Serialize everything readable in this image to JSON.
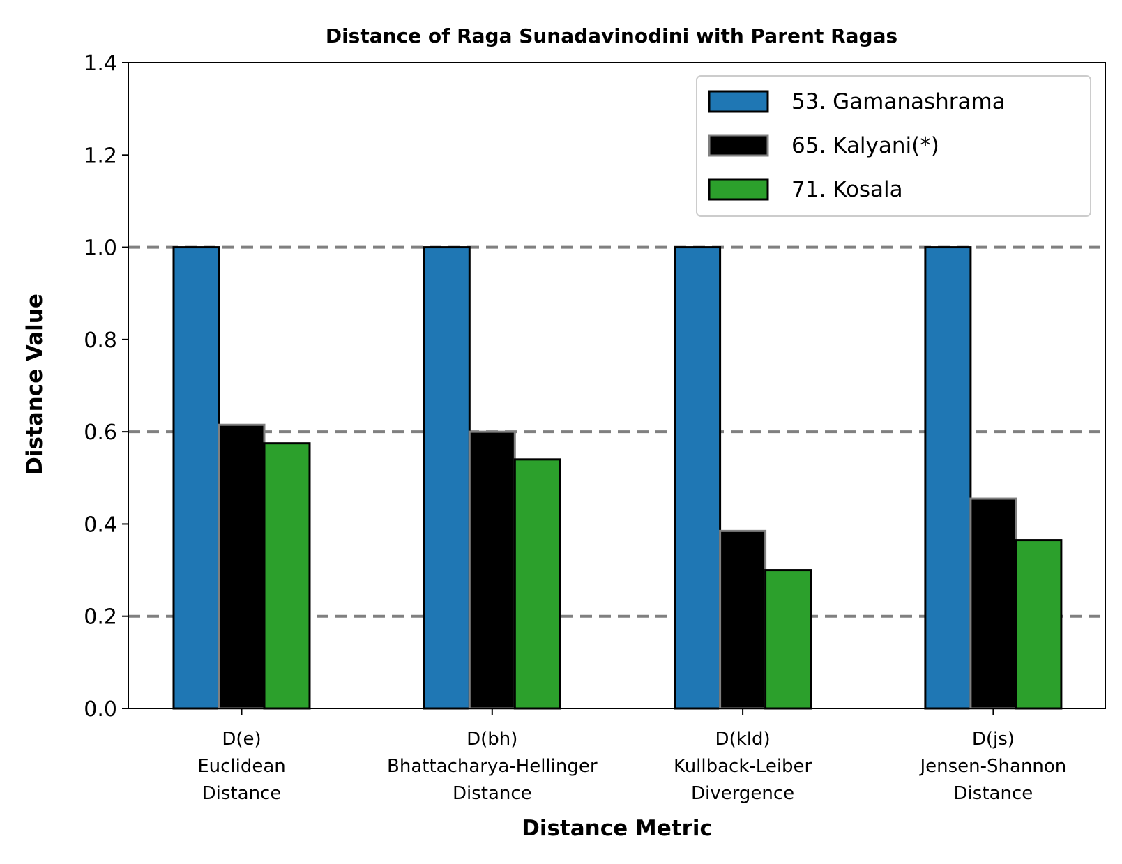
{
  "chart_data": {
    "type": "bar",
    "title": "Distance of Raga Sunadavinodini with Parent Ragas",
    "xlabel": "Distance Metric",
    "ylabel": "Distance Value",
    "categories": [
      [
        "D(e)",
        "Euclidean",
        "Distance"
      ],
      [
        "D(bh)",
        "Bhattacharya-Hellinger",
        "Distance"
      ],
      [
        "D(kld)",
        "Kullback-Leiber",
        "Divergence"
      ],
      [
        "D(js)",
        "Jensen-Shannon",
        "Distance"
      ]
    ],
    "series": [
      {
        "name": "53. Gamanashrama",
        "values": [
          1.0,
          1.0,
          1.0,
          1.0
        ],
        "color": "#1f77b4",
        "edge": "#000000"
      },
      {
        "name": "65. Kalyani(*)",
        "values": [
          0.615,
          0.6,
          0.385,
          0.455
        ],
        "color": "#000000",
        "edge": "#808080"
      },
      {
        "name": "71. Kosala",
        "values": [
          0.575,
          0.54,
          0.3,
          0.365
        ],
        "color": "#2ca02c",
        "edge": "#000000"
      }
    ],
    "ylim": [
      0,
      1.4
    ],
    "yticks": [
      "0.0",
      "0.2",
      "0.4",
      "0.6",
      "0.8",
      "1.0",
      "1.2",
      "1.4"
    ],
    "reference_lines": [
      0.2,
      0.6,
      1.0
    ],
    "reference_line_color": "#808080",
    "grid": false,
    "legend_position": "top-right"
  }
}
